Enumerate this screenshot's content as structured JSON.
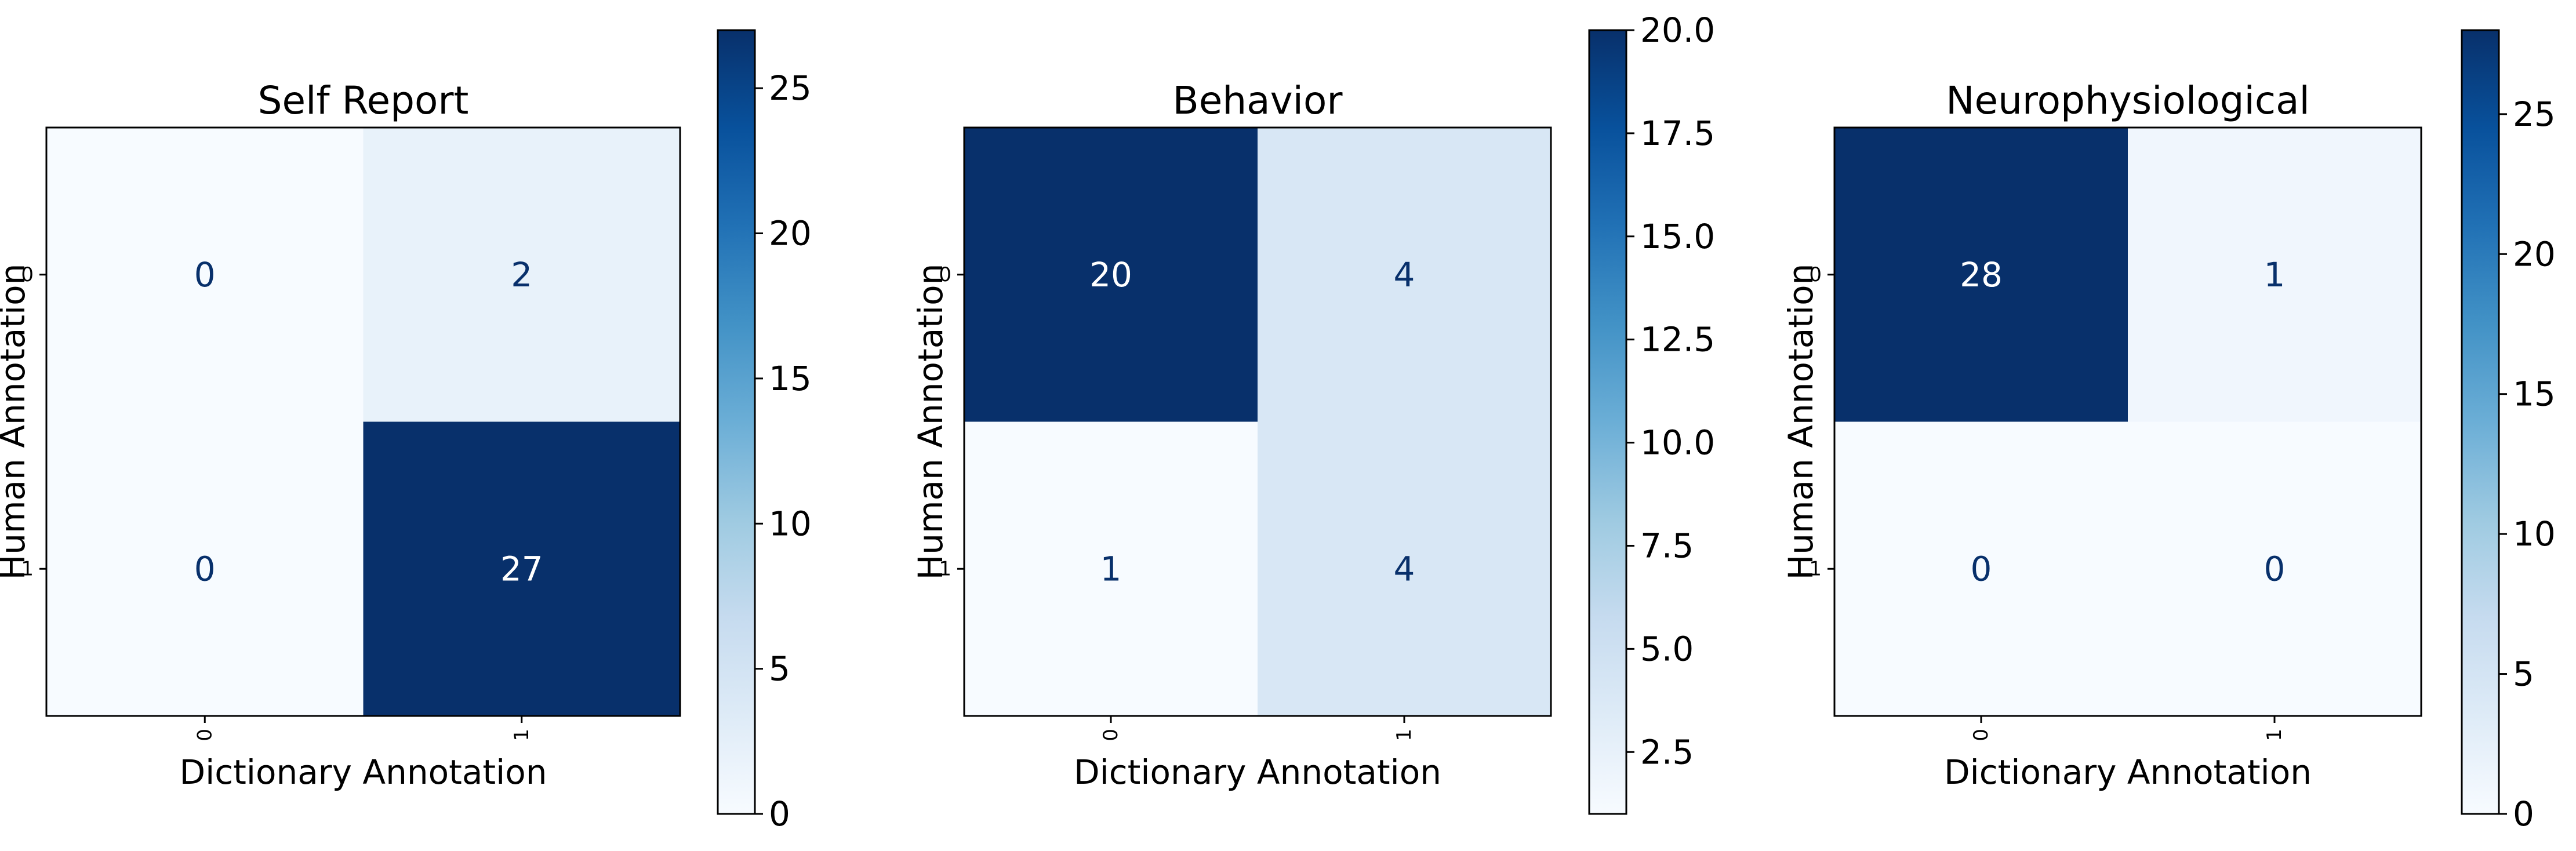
{
  "colormap": {
    "name": "Blues",
    "low": "#f7fbff",
    "high": "#08306b",
    "text_light": "#ffffff",
    "text_dark": "#08306b"
  },
  "chart_data": [
    {
      "type": "heatmap",
      "title": "Self Report",
      "xlabel": "Dictionary Annotation",
      "ylabel": "Human Annotation",
      "x_categories": [
        "0",
        "1"
      ],
      "y_categories": [
        "0",
        "1"
      ],
      "values": [
        [
          0,
          2
        ],
        [
          0,
          27
        ]
      ],
      "color_range": [
        0,
        27
      ],
      "colorbar_ticks": [
        "0",
        "5",
        "10",
        "15",
        "20",
        "25"
      ]
    },
    {
      "type": "heatmap",
      "title": "Behavior",
      "xlabel": "Dictionary Annotation",
      "ylabel": "Human Annotation",
      "x_categories": [
        "0",
        "1"
      ],
      "y_categories": [
        "0",
        "1"
      ],
      "values": [
        [
          20,
          4
        ],
        [
          1,
          4
        ]
      ],
      "color_range": [
        1,
        20
      ],
      "colorbar_ticks": [
        "2.5",
        "5.0",
        "7.5",
        "10.0",
        "12.5",
        "15.0",
        "17.5",
        "20.0"
      ]
    },
    {
      "type": "heatmap",
      "title": "Neurophysiological",
      "xlabel": "Dictionary Annotation",
      "ylabel": "Human Annotation",
      "x_categories": [
        "0",
        "1"
      ],
      "y_categories": [
        "0",
        "1"
      ],
      "values": [
        [
          28,
          1
        ],
        [
          0,
          0
        ]
      ],
      "color_range": [
        0,
        28
      ],
      "colorbar_ticks": [
        "0",
        "5",
        "10",
        "15",
        "20",
        "25"
      ]
    }
  ]
}
